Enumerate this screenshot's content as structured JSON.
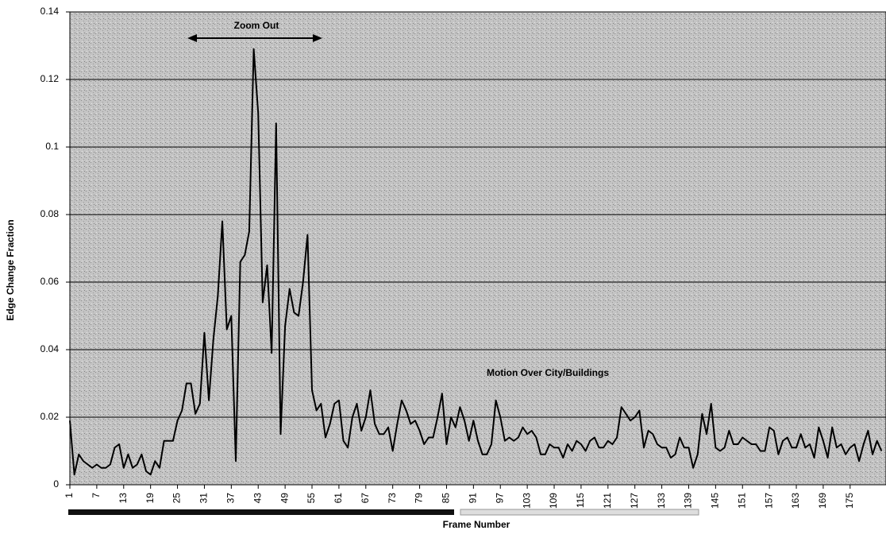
{
  "chart_data": {
    "type": "line",
    "x_label": "Frame Number",
    "y_label": "Edge Change Fraction",
    "annotations": [
      "Zoom Out",
      "Motion Over City/Buildings"
    ],
    "x": [
      1,
      2,
      3,
      4,
      5,
      6,
      7,
      8,
      9,
      10,
      11,
      12,
      13,
      14,
      15,
      16,
      17,
      18,
      19,
      20,
      21,
      22,
      23,
      24,
      25,
      26,
      27,
      28,
      29,
      30,
      31,
      32,
      33,
      34,
      35,
      36,
      37,
      38,
      39,
      40,
      41,
      42,
      43,
      44,
      45,
      46,
      47,
      48,
      49,
      50,
      51,
      52,
      53,
      54,
      55,
      56,
      57,
      58,
      59,
      60,
      61,
      62,
      63,
      64,
      65,
      66,
      67,
      68,
      69,
      70,
      71,
      72,
      73,
      74,
      75,
      76,
      77,
      78,
      79,
      80,
      81,
      82,
      83,
      84,
      85,
      86,
      87,
      88,
      89,
      90,
      91,
      92,
      93,
      94,
      95,
      96,
      97,
      98,
      99,
      100,
      101,
      102,
      103,
      104,
      105,
      106,
      107,
      108,
      109,
      110,
      111,
      112,
      113,
      114,
      115,
      116,
      117,
      118,
      119,
      120,
      121,
      122,
      123,
      124,
      125,
      126,
      127,
      128,
      129,
      130,
      131,
      132,
      133,
      134,
      135,
      136,
      137,
      138,
      139,
      140,
      141,
      142,
      143,
      144,
      145,
      146,
      147,
      148,
      149,
      150,
      151,
      152,
      153,
      154,
      155,
      156,
      157,
      158,
      159,
      160,
      161,
      162,
      163,
      164,
      165,
      166,
      167,
      168,
      169,
      170,
      171,
      172,
      173,
      174,
      175,
      176,
      177,
      178,
      179,
      180,
      181,
      182
    ],
    "series": [
      {
        "name": "Edge Change Fraction",
        "color": "#000000",
        "values": [
          0.019,
          0.003,
          0.009,
          0.007,
          0.006,
          0.005,
          0.006,
          0.005,
          0.005,
          0.006,
          0.011,
          0.012,
          0.005,
          0.009,
          0.005,
          0.006,
          0.009,
          0.004,
          0.003,
          0.007,
          0.005,
          0.013,
          0.013,
          0.013,
          0.019,
          0.022,
          0.03,
          0.03,
          0.021,
          0.024,
          0.045,
          0.025,
          0.043,
          0.056,
          0.078,
          0.046,
          0.05,
          0.007,
          0.066,
          0.068,
          0.075,
          0.129,
          0.11,
          0.054,
          0.065,
          0.039,
          0.107,
          0.015,
          0.047,
          0.058,
          0.051,
          0.05,
          0.06,
          0.074,
          0.028,
          0.022,
          0.024,
          0.014,
          0.018,
          0.024,
          0.025,
          0.013,
          0.011,
          0.02,
          0.024,
          0.016,
          0.02,
          0.028,
          0.018,
          0.015,
          0.015,
          0.017,
          0.01,
          0.018,
          0.025,
          0.022,
          0.018,
          0.019,
          0.016,
          0.012,
          0.014,
          0.014,
          0.02,
          0.027,
          0.012,
          0.02,
          0.017,
          0.023,
          0.019,
          0.013,
          0.019,
          0.013,
          0.009,
          0.009,
          0.012,
          0.025,
          0.02,
          0.013,
          0.014,
          0.013,
          0.014,
          0.017,
          0.015,
          0.016,
          0.014,
          0.009,
          0.009,
          0.012,
          0.011,
          0.011,
          0.008,
          0.012,
          0.01,
          0.013,
          0.012,
          0.01,
          0.013,
          0.014,
          0.011,
          0.011,
          0.013,
          0.012,
          0.014,
          0.023,
          0.021,
          0.019,
          0.02,
          0.022,
          0.011,
          0.016,
          0.015,
          0.012,
          0.011,
          0.011,
          0.008,
          0.009,
          0.014,
          0.011,
          0.011,
          0.005,
          0.009,
          0.021,
          0.015,
          0.024,
          0.011,
          0.01,
          0.011,
          0.016,
          0.012,
          0.012,
          0.014,
          0.013,
          0.012,
          0.012,
          0.01,
          0.01,
          0.017,
          0.016,
          0.009,
          0.013,
          0.014,
          0.011,
          0.011,
          0.015,
          0.011,
          0.012,
          0.008,
          0.017,
          0.013,
          0.008,
          0.017,
          0.011,
          0.012,
          0.009,
          0.011,
          0.012,
          0.007,
          0.012,
          0.016,
          0.009,
          0.013,
          0.01
        ]
      }
    ],
    "xlim": [
      1,
      183
    ],
    "xticks": [
      1,
      7,
      13,
      19,
      25,
      31,
      37,
      43,
      49,
      55,
      61,
      67,
      73,
      79,
      85,
      91,
      97,
      103,
      109,
      115,
      121,
      127,
      133,
      139,
      145,
      151,
      157,
      163,
      169,
      175
    ],
    "ylim": [
      0,
      0.14
    ],
    "yticks": [
      0,
      0.02,
      0.04,
      0.06,
      0.08,
      0.1,
      0.12,
      0.14
    ],
    "grid": true
  }
}
